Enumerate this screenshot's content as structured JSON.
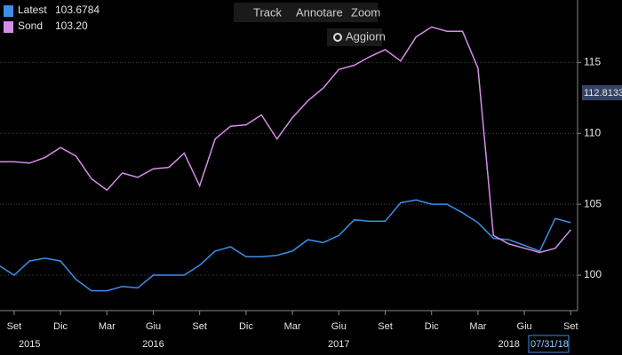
{
  "chart_data": {
    "type": "line",
    "x": [
      "2015-08",
      "2015-09",
      "2015-10",
      "2015-11",
      "2015-12",
      "2016-01",
      "2016-02",
      "2016-03",
      "2016-04",
      "2016-05",
      "2016-06",
      "2016-07",
      "2016-08",
      "2016-09",
      "2016-10",
      "2016-11",
      "2016-12",
      "2017-01",
      "2017-02",
      "2017-03",
      "2017-04",
      "2017-05",
      "2017-06",
      "2017-07",
      "2017-08",
      "2017-09",
      "2017-10",
      "2017-11",
      "2017-12",
      "2018-01",
      "2018-02",
      "2018-03",
      "2018-04",
      "2018-05",
      "2018-06",
      "2018-07",
      "2018-08",
      "2018-09"
    ],
    "series": [
      {
        "name": "Latest",
        "color": "#3d8ee8",
        "last_value": 103.6784,
        "values": [
          100.7,
          100.0,
          101.0,
          101.2,
          101.0,
          99.7,
          98.9,
          98.9,
          99.2,
          99.1,
          100.0,
          100.0,
          100.0,
          100.7,
          101.7,
          102.0,
          101.3,
          101.3,
          101.4,
          101.7,
          102.5,
          102.3,
          102.8,
          103.9,
          103.8,
          103.8,
          105.1,
          105.3,
          105.0,
          105.0,
          104.4,
          103.7,
          102.6,
          102.5,
          102.1,
          101.7,
          104.0,
          103.7
        ]
      },
      {
        "name": "Sond",
        "color": "#d58ee8",
        "last_value": {
          "value": 103.2,
          "label": "103.20"
        },
        "values": [
          108.0,
          108.0,
          107.9,
          108.3,
          109.0,
          108.4,
          106.8,
          106.0,
          107.2,
          106.9,
          107.5,
          107.6,
          108.6,
          106.3,
          109.6,
          110.5,
          110.6,
          111.3,
          109.6,
          111.1,
          112.3,
          113.2,
          114.5,
          114.8,
          115.4,
          115.9,
          115.1,
          116.8,
          117.5,
          117.2,
          117.2,
          114.6,
          102.8,
          102.2,
          101.9,
          101.6,
          101.9,
          103.2
        ]
      }
    ],
    "ylim": [
      97.5,
      119.4
    ],
    "yticks": [
      100,
      105,
      110,
      115
    ],
    "grid": true,
    "xticks": [
      {
        "value": "2015-09",
        "label": "Set"
      },
      {
        "value": "2015-12",
        "label": "Dic"
      },
      {
        "value": "2016-03",
        "label": "Mar"
      },
      {
        "value": "2016-06",
        "label": "Giu"
      },
      {
        "value": "2016-09",
        "label": "Set"
      },
      {
        "value": "2016-12",
        "label": "Dic"
      },
      {
        "value": "2017-03",
        "label": "Mar"
      },
      {
        "value": "2017-06",
        "label": "Giu"
      },
      {
        "value": "2017-09",
        "label": "Set"
      },
      {
        "value": "2017-12",
        "label": "Dic"
      },
      {
        "value": "2018-03",
        "label": "Mar"
      },
      {
        "value": "2018-06",
        "label": "Giu"
      },
      {
        "value": "2018-09",
        "label": "Set"
      }
    ],
    "year_labels": [
      {
        "value": "2015-10",
        "label": "2015"
      },
      {
        "value": "2016-06",
        "label": "2016"
      },
      {
        "value": "2017-06",
        "label": "2017"
      },
      {
        "value": "2018-05",
        "label": "2018"
      }
    ],
    "cursor_value": 112.8133,
    "date_label": "07/31/18"
  },
  "toolbar": {
    "track": "Track",
    "annotate": "Annotare",
    "zoom": "Zoom",
    "refresh": "Aggiorn"
  }
}
